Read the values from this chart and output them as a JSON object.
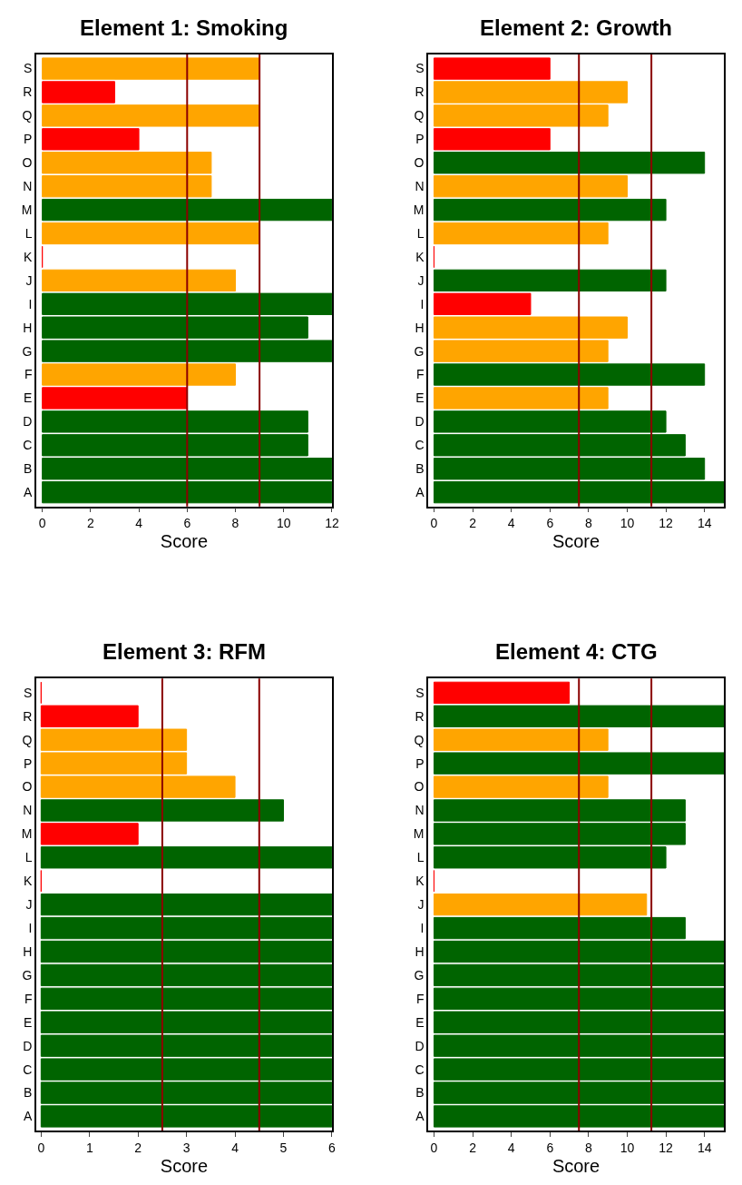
{
  "chart_data": [
    {
      "type": "bar",
      "orientation": "horizontal",
      "title": "Element 1: Smoking",
      "xlabel": "Score",
      "categories": [
        "S",
        "R",
        "Q",
        "P",
        "O",
        "N",
        "M",
        "L",
        "K",
        "J",
        "I",
        "H",
        "G",
        "F",
        "E",
        "D",
        "C",
        "B",
        "A"
      ],
      "values": [
        9,
        3,
        9,
        4,
        7,
        7,
        12,
        9,
        0,
        8,
        12,
        11,
        12,
        8,
        6,
        11,
        11,
        12,
        12
      ],
      "colors": [
        "#ffa500",
        "#ff0000",
        "#ffa500",
        "#ff0000",
        "#ffa500",
        "#ffa500",
        "#006400",
        "#ffa500",
        "#ff0000",
        "#ffa500",
        "#006400",
        "#006400",
        "#006400",
        "#ffa500",
        "#ff0000",
        "#006400",
        "#006400",
        "#006400",
        "#006400"
      ],
      "xlim": [
        -0.25,
        12
      ],
      "xticks": [
        0,
        2,
        4,
        6,
        8,
        10,
        12
      ],
      "ref_lines": [
        {
          "axis": "x",
          "value": 6,
          "color": "#8b0000"
        },
        {
          "axis": "x",
          "value": 9,
          "color": "#8b0000"
        }
      ]
    },
    {
      "type": "bar",
      "orientation": "horizontal",
      "title": "Element 2: Growth",
      "xlabel": "Score",
      "categories": [
        "S",
        "R",
        "Q",
        "P",
        "O",
        "N",
        "M",
        "L",
        "K",
        "J",
        "I",
        "H",
        "G",
        "F",
        "E",
        "D",
        "C",
        "B",
        "A"
      ],
      "values": [
        6,
        10,
        9,
        6,
        14,
        10,
        12,
        9,
        0,
        12,
        5,
        10,
        9,
        14,
        9,
        12,
        13,
        14,
        15
      ],
      "colors": [
        "#ff0000",
        "#ffa500",
        "#ffa500",
        "#ff0000",
        "#006400",
        "#ffa500",
        "#006400",
        "#ffa500",
        "#ff0000",
        "#006400",
        "#ff0000",
        "#ffa500",
        "#ffa500",
        "#006400",
        "#ffa500",
        "#006400",
        "#006400",
        "#006400",
        "#006400"
      ],
      "xlim": [
        -0.3,
        15
      ],
      "xticks": [
        0,
        2,
        4,
        6,
        8,
        10,
        12,
        14
      ],
      "ref_lines": [
        {
          "axis": "x",
          "value": 7.5,
          "color": "#8b0000"
        },
        {
          "axis": "x",
          "value": 11.25,
          "color": "#8b0000"
        }
      ]
    },
    {
      "type": "bar",
      "orientation": "horizontal",
      "title": "Element 3: RFM",
      "xlabel": "Score",
      "categories": [
        "S",
        "R",
        "Q",
        "P",
        "O",
        "N",
        "M",
        "L",
        "K",
        "J",
        "I",
        "H",
        "G",
        "F",
        "E",
        "D",
        "C",
        "B",
        "A"
      ],
      "values": [
        0,
        2,
        3,
        3,
        4,
        5,
        2,
        6,
        0,
        6,
        6,
        6,
        6,
        6,
        6,
        6,
        6,
        6,
        6
      ],
      "colors": [
        "#ff0000",
        "#ff0000",
        "#ffa500",
        "#ffa500",
        "#ffa500",
        "#006400",
        "#ff0000",
        "#006400",
        "#ff0000",
        "#006400",
        "#006400",
        "#006400",
        "#006400",
        "#006400",
        "#006400",
        "#006400",
        "#006400",
        "#006400",
        "#006400"
      ],
      "xlim": [
        -0.1,
        6
      ],
      "xticks": [
        0,
        1,
        2,
        3,
        4,
        5,
        6
      ],
      "ref_lines": [
        {
          "axis": "x",
          "value": 2.5,
          "color": "#8b0000"
        },
        {
          "axis": "x",
          "value": 4.5,
          "color": "#8b0000"
        }
      ]
    },
    {
      "type": "bar",
      "orientation": "horizontal",
      "title": "Element 4: CTG",
      "xlabel": "Score",
      "categories": [
        "S",
        "R",
        "Q",
        "P",
        "O",
        "N",
        "M",
        "L",
        "K",
        "J",
        "I",
        "H",
        "G",
        "F",
        "E",
        "D",
        "C",
        "B",
        "A"
      ],
      "values": [
        7,
        15,
        9,
        15,
        9,
        13,
        13,
        12,
        0,
        11,
        13,
        15,
        15,
        15,
        15,
        15,
        15,
        15,
        15
      ],
      "colors": [
        "#ff0000",
        "#006400",
        "#ffa500",
        "#006400",
        "#ffa500",
        "#006400",
        "#006400",
        "#006400",
        "#ff0000",
        "#ffa500",
        "#006400",
        "#006400",
        "#006400",
        "#006400",
        "#006400",
        "#006400",
        "#006400",
        "#006400",
        "#006400"
      ],
      "xlim": [
        -0.3,
        15
      ],
      "xticks": [
        0,
        2,
        4,
        6,
        8,
        10,
        12,
        14
      ],
      "ref_lines": [
        {
          "axis": "x",
          "value": 7.5,
          "color": "#8b0000"
        },
        {
          "axis": "x",
          "value": 11.25,
          "color": "#8b0000"
        }
      ]
    }
  ]
}
